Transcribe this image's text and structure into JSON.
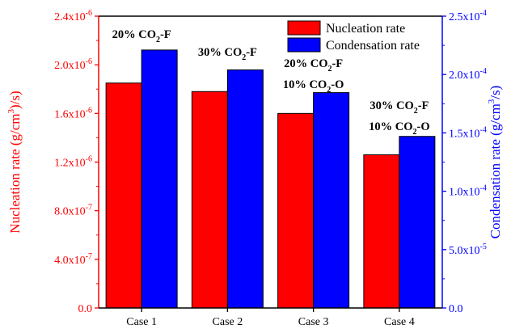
{
  "chart_data": {
    "type": "bar",
    "categories": [
      "Case 1",
      "Case 2",
      "Case 3",
      "Case 4"
    ],
    "series": [
      {
        "name": "Nucleation rate",
        "axis": "left",
        "color": "#ff0000",
        "values": [
          1.85e-06,
          1.78e-06,
          1.6e-06,
          1.26e-06
        ]
      },
      {
        "name": "Condensation rate",
        "axis": "right",
        "color": "#0000ff",
        "values": [
          0.000221,
          0.000204,
          0.0001845,
          0.000147
        ]
      }
    ],
    "ylabel_left": {
      "main": "Nucleation rate (g/cm",
      "sup": "3",
      "end": ")/s)"
    },
    "ylabel_right": {
      "main": "Condensation rate (g/cm",
      "sup": "3",
      "end": "/s)"
    },
    "ylim_left": [
      0,
      2.4e-06
    ],
    "ylim_right": [
      0,
      0.00025
    ],
    "yticks_left": [
      {
        "m": "0.0",
        "e": ""
      },
      {
        "m": "4.0x10",
        "e": "-7"
      },
      {
        "m": "8.0x10",
        "e": "-7"
      },
      {
        "m": "1.2x10",
        "e": "-6"
      },
      {
        "m": "1.6x10",
        "e": "-6"
      },
      {
        "m": "2.0x10",
        "e": "-6"
      },
      {
        "m": "2.4x10",
        "e": "-6"
      }
    ],
    "yticks_right": [
      {
        "m": "0.0",
        "e": ""
      },
      {
        "m": "5.0x10",
        "e": "-5"
      },
      {
        "m": "1.0x10",
        "e": "-4"
      },
      {
        "m": "1.5x10",
        "e": "-4"
      },
      {
        "m": "2.0x10",
        "e": "-4"
      },
      {
        "m": "2.5x10",
        "e": "-4"
      }
    ],
    "left_color": "#ff0000",
    "right_color": "#0000ff",
    "legend_position": "top-right",
    "annotations": [
      {
        "category": "Case 1",
        "lines": [
          {
            "a": "20% CO",
            "sub": "2",
            "b": "-F"
          }
        ]
      },
      {
        "category": "Case 2",
        "lines": [
          {
            "a": "30% CO",
            "sub": "2",
            "b": "-F"
          }
        ]
      },
      {
        "category": "Case 3",
        "lines": [
          {
            "a": "20% CO",
            "sub": "2",
            "b": "-F"
          },
          {
            "a": "10% CO",
            "sub": "2",
            "b": "-O"
          }
        ]
      },
      {
        "category": "Case 4",
        "lines": [
          {
            "a": "30% CO",
            "sub": "2",
            "b": "-F"
          },
          {
            "a": "10% CO",
            "sub": "2",
            "b": "-O"
          }
        ]
      }
    ]
  }
}
